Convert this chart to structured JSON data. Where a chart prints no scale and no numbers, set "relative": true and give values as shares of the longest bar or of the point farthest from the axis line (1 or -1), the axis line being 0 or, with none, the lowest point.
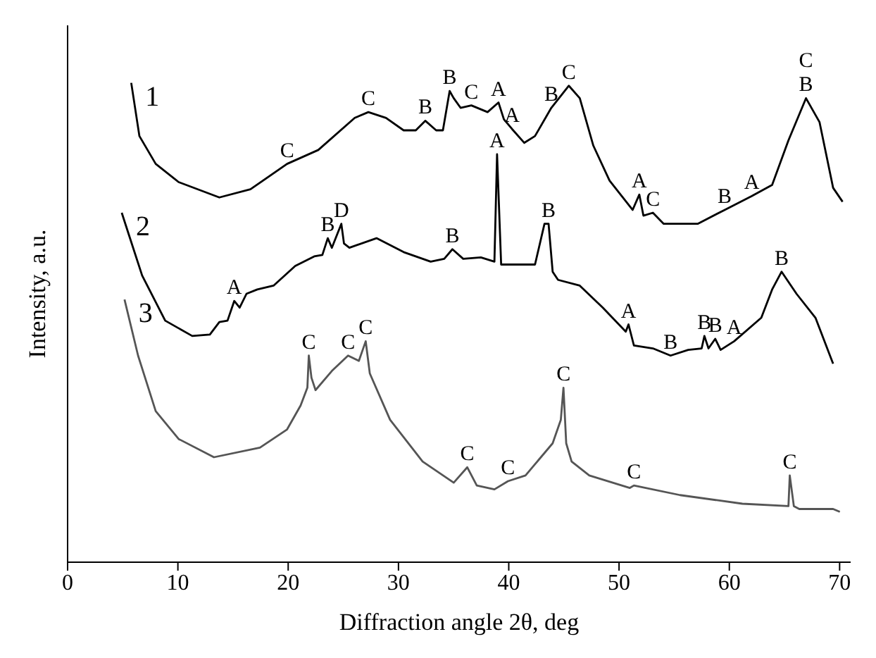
{
  "chart_data": {
    "type": "line",
    "relative": true,
    "xlabel": "Diffraction angle 2θ, deg",
    "ylabel": "Intensity, a.u.",
    "xlim": [
      0,
      71
    ],
    "xticks": [
      0,
      10,
      20,
      30,
      40,
      50,
      60,
      70
    ],
    "series": [
      {
        "name": "1",
        "color": "#000000",
        "x": [
          5.77,
          6.51,
          7.99,
          10.07,
          13.76,
          16.58,
          19.9,
          22.73,
          26.04,
          27.27,
          28.87,
          30.47,
          31.57,
          32.43,
          33.42,
          34.03,
          34.64,
          35.01,
          35.63,
          36.61,
          38.08,
          39.07,
          39.56,
          40.29,
          41.4,
          42.38,
          43.86,
          45.45,
          46.44,
          47.67,
          49.14,
          51.23,
          51.84,
          52.21,
          53.07,
          54.05,
          57.13,
          59.58,
          62.04,
          63.88,
          65.36,
          66.95,
          68.18,
          69.41,
          70.27
        ],
        "values": [
          1.0,
          0.889,
          0.831,
          0.793,
          0.761,
          0.778,
          0.831,
          0.86,
          0.927,
          0.939,
          0.927,
          0.901,
          0.901,
          0.921,
          0.901,
          0.901,
          0.983,
          0.968,
          0.948,
          0.953,
          0.939,
          0.959,
          0.924,
          0.904,
          0.875,
          0.889,
          0.948,
          0.994,
          0.968,
          0.869,
          0.796,
          0.735,
          0.767,
          0.723,
          0.729,
          0.706,
          0.706,
          0.735,
          0.764,
          0.787,
          0.88,
          0.968,
          0.918,
          0.781,
          0.752
        ]
      },
      {
        "name": "2",
        "color": "#000000",
        "x": [
          4.91,
          5.53,
          6.76,
          8.85,
          11.3,
          12.9,
          13.76,
          14.5,
          15.11,
          15.6,
          16.22,
          17.2,
          18.67,
          20.64,
          22.36,
          23.1,
          23.59,
          23.96,
          24.82,
          25.06,
          25.55,
          28.01,
          30.47,
          32.92,
          34.15,
          34.89,
          35.87,
          37.47,
          38.7,
          38.94,
          39.31,
          42.38,
          43.24,
          43.61,
          43.98,
          44.47,
          46.44,
          48.53,
          50.61,
          50.86,
          51.35,
          53.07,
          54.67,
          56.27,
          57.49,
          57.74,
          58.11,
          58.72,
          59.21,
          60.44,
          62.9,
          63.88,
          64.74,
          66.09,
          67.81,
          69.41
        ],
        "values": [
          0.729,
          0.685,
          0.598,
          0.504,
          0.472,
          0.475,
          0.501,
          0.504,
          0.545,
          0.531,
          0.56,
          0.569,
          0.577,
          0.618,
          0.638,
          0.641,
          0.676,
          0.656,
          0.706,
          0.665,
          0.656,
          0.676,
          0.647,
          0.627,
          0.633,
          0.653,
          0.633,
          0.636,
          0.627,
          0.851,
          0.621,
          0.621,
          0.706,
          0.706,
          0.606,
          0.589,
          0.577,
          0.531,
          0.481,
          0.496,
          0.452,
          0.446,
          0.431,
          0.443,
          0.446,
          0.472,
          0.446,
          0.466,
          0.443,
          0.461,
          0.51,
          0.569,
          0.606,
          0.56,
          0.51,
          0.414
        ]
      },
      {
        "name": "3",
        "color": "#555555",
        "x": [
          5.16,
          6.39,
          7.99,
          10.07,
          13.27,
          17.44,
          19.9,
          21.13,
          21.74,
          21.87,
          22.11,
          22.48,
          23.96,
          25.43,
          26.41,
          27.03,
          27.4,
          29.24,
          32.19,
          35.01,
          36.24,
          37.1,
          38.7,
          39.93,
          41.52,
          43.98,
          44.72,
          44.96,
          45.21,
          45.7,
          47.3,
          50.98,
          51.35,
          55.53,
          61.18,
          65.36,
          65.48,
          65.85,
          66.34,
          69.41,
          70.02
        ],
        "values": [
          0.548,
          0.431,
          0.315,
          0.257,
          0.219,
          0.239,
          0.277,
          0.327,
          0.364,
          0.431,
          0.385,
          0.359,
          0.399,
          0.431,
          0.42,
          0.461,
          0.394,
          0.297,
          0.21,
          0.166,
          0.198,
          0.16,
          0.152,
          0.169,
          0.181,
          0.248,
          0.297,
          0.364,
          0.248,
          0.21,
          0.181,
          0.155,
          0.16,
          0.14,
          0.122,
          0.117,
          0.181,
          0.117,
          0.111,
          0.111,
          0.105
        ]
      }
    ],
    "annotations": [
      {
        "text": "C",
        "x": 19.9,
        "y": 0.831
      },
      {
        "text": "C",
        "x": 27.27,
        "y": 0.939
      },
      {
        "text": "B",
        "x": 32.43,
        "y": 0.921
      },
      {
        "text": "B",
        "x": 34.64,
        "y": 0.983
      },
      {
        "text": "C",
        "x": 36.61,
        "y": 0.953
      },
      {
        "text": "A",
        "x": 39.07,
        "y": 0.959
      },
      {
        "text": "A",
        "x": 40.29,
        "y": 0.904
      },
      {
        "text": "B",
        "x": 43.86,
        "y": 0.948
      },
      {
        "text": "C",
        "x": 45.45,
        "y": 0.994
      },
      {
        "text": "A",
        "x": 51.84,
        "y": 0.767
      },
      {
        "text": "C",
        "x": 53.07,
        "y": 0.729
      },
      {
        "text": "B",
        "x": 59.58,
        "y": 0.735
      },
      {
        "text": "A",
        "x": 62.04,
        "y": 0.764
      },
      {
        "text": "B",
        "x": 66.95,
        "y": 0.968
      },
      {
        "text": "C",
        "x": 66.95,
        "y": 0.968
      },
      {
        "text": "A",
        "x": 15.11,
        "y": 0.545
      },
      {
        "text": "B",
        "x": 23.59,
        "y": 0.676
      },
      {
        "text": "D",
        "x": 24.82,
        "y": 0.706
      },
      {
        "text": "B",
        "x": 34.89,
        "y": 0.653
      },
      {
        "text": "A",
        "x": 38.94,
        "y": 0.851
      },
      {
        "text": "B",
        "x": 43.61,
        "y": 0.706
      },
      {
        "text": "A",
        "x": 50.86,
        "y": 0.496
      },
      {
        "text": "B",
        "x": 54.67,
        "y": 0.431
      },
      {
        "text": "B",
        "x": 57.74,
        "y": 0.472
      },
      {
        "text": "B",
        "x": 58.72,
        "y": 0.466
      },
      {
        "text": "A",
        "x": 60.44,
        "y": 0.461
      },
      {
        "text": "B",
        "x": 64.74,
        "y": 0.606
      },
      {
        "text": "C",
        "x": 21.87,
        "y": 0.431
      },
      {
        "text": "C",
        "x": 25.43,
        "y": 0.431
      },
      {
        "text": "C",
        "x": 27.03,
        "y": 0.461
      },
      {
        "text": "C",
        "x": 36.24,
        "y": 0.198
      },
      {
        "text": "C",
        "x": 39.93,
        "y": 0.169
      },
      {
        "text": "C",
        "x": 44.96,
        "y": 0.364
      },
      {
        "text": "C",
        "x": 51.35,
        "y": 0.16
      },
      {
        "text": "C",
        "x": 65.48,
        "y": 0.181
      }
    ]
  }
}
